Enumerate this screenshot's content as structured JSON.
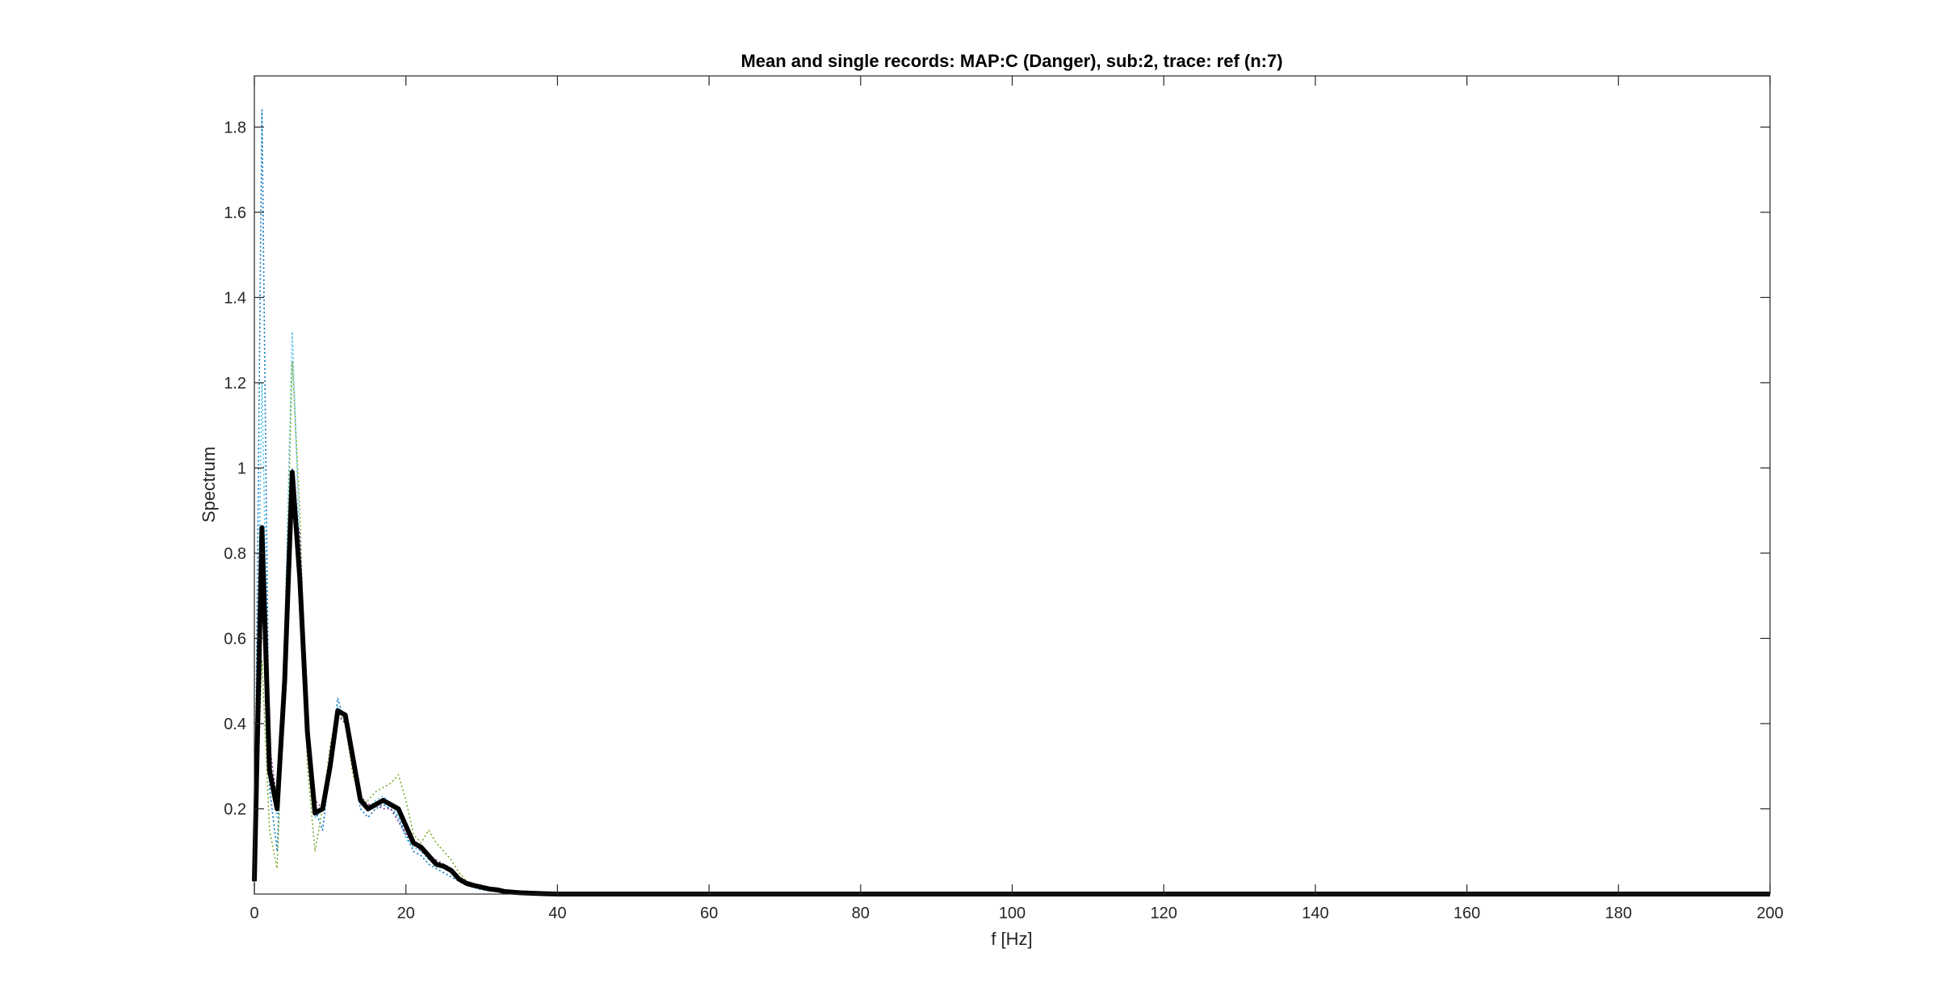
{
  "chart_data": {
    "type": "line",
    "title": "Mean and single records: MAP:C (Danger), sub:2, trace: ref (n:7)",
    "xlabel": "f [Hz]",
    "ylabel": "Spectrum",
    "xlim": [
      0,
      200
    ],
    "ylim": [
      0,
      1.92
    ],
    "xticks": [
      0,
      20,
      40,
      60,
      80,
      100,
      120,
      140,
      160,
      180,
      200
    ],
    "yticks": [
      0.2,
      0.4,
      0.6,
      0.8,
      1,
      1.2,
      1.4,
      1.6,
      1.8
    ],
    "xtick_labels": [
      "0",
      "20",
      "40",
      "60",
      "80",
      "100",
      "120",
      "140",
      "160",
      "180",
      "200"
    ],
    "ytick_labels": [
      "0.2",
      "0.4",
      "0.6",
      "0.8",
      "1",
      "1.2",
      "1.4",
      "1.6",
      "1.8"
    ],
    "grid": false,
    "series": [
      {
        "style": "dotted",
        "color": "#0072BD",
        "points": [
          [
            0,
            0.02
          ],
          [
            1,
            1.84
          ],
          [
            2,
            0.25
          ],
          [
            3,
            0.1
          ],
          [
            4,
            0.5
          ],
          [
            5,
            1.0
          ],
          [
            6,
            0.7
          ],
          [
            7,
            0.35
          ],
          [
            8,
            0.2
          ],
          [
            9,
            0.15
          ],
          [
            10,
            0.3
          ],
          [
            11,
            0.46
          ],
          [
            12,
            0.4
          ],
          [
            13,
            0.3
          ],
          [
            14,
            0.2
          ],
          [
            15,
            0.18
          ],
          [
            16,
            0.2
          ],
          [
            17,
            0.21
          ],
          [
            18,
            0.2
          ],
          [
            19,
            0.18
          ],
          [
            20,
            0.14
          ],
          [
            21,
            0.1
          ],
          [
            22,
            0.09
          ],
          [
            23,
            0.07
          ],
          [
            24,
            0.06
          ],
          [
            25,
            0.05
          ],
          [
            26,
            0.04
          ],
          [
            27,
            0.03
          ],
          [
            28,
            0.02
          ],
          [
            30,
            0.01
          ],
          [
            32,
            0.005
          ],
          [
            35,
            0.002
          ],
          [
            40,
            0.001
          ],
          [
            60,
            0.0
          ],
          [
            200,
            0.0
          ]
        ]
      },
      {
        "style": "dotted",
        "color": "#4DBEEE",
        "points": [
          [
            0,
            0.04
          ],
          [
            1,
            1.2
          ],
          [
            2,
            0.3
          ],
          [
            3,
            0.18
          ],
          [
            4,
            0.6
          ],
          [
            5,
            1.32
          ],
          [
            6,
            0.8
          ],
          [
            7,
            0.4
          ],
          [
            8,
            0.18
          ],
          [
            9,
            0.2
          ],
          [
            10,
            0.32
          ],
          [
            11,
            0.44
          ],
          [
            12,
            0.42
          ],
          [
            13,
            0.3
          ],
          [
            14,
            0.22
          ],
          [
            15,
            0.2
          ],
          [
            16,
            0.22
          ],
          [
            17,
            0.23
          ],
          [
            18,
            0.21
          ],
          [
            19,
            0.18
          ],
          [
            20,
            0.13
          ],
          [
            21,
            0.11
          ],
          [
            22,
            0.1
          ],
          [
            23,
            0.08
          ],
          [
            24,
            0.07
          ],
          [
            25,
            0.06
          ],
          [
            26,
            0.05
          ],
          [
            27,
            0.03
          ],
          [
            28,
            0.02
          ],
          [
            30,
            0.01
          ],
          [
            32,
            0.005
          ],
          [
            35,
            0.002
          ],
          [
            40,
            0.001
          ],
          [
            60,
            0.0
          ],
          [
            200,
            0.0
          ]
        ]
      },
      {
        "style": "dotted",
        "color": "#77AC30",
        "points": [
          [
            0,
            0.03
          ],
          [
            1,
            0.55
          ],
          [
            2,
            0.15
          ],
          [
            3,
            0.06
          ],
          [
            4,
            0.55
          ],
          [
            5,
            1.25
          ],
          [
            6,
            0.9
          ],
          [
            7,
            0.3
          ],
          [
            8,
            0.1
          ],
          [
            9,
            0.2
          ],
          [
            10,
            0.35
          ],
          [
            11,
            0.43
          ],
          [
            12,
            0.4
          ],
          [
            13,
            0.28
          ],
          [
            14,
            0.22
          ],
          [
            15,
            0.22
          ],
          [
            16,
            0.24
          ],
          [
            17,
            0.25
          ],
          [
            18,
            0.26
          ],
          [
            19,
            0.28
          ],
          [
            20,
            0.22
          ],
          [
            21,
            0.14
          ],
          [
            22,
            0.12
          ],
          [
            23,
            0.15
          ],
          [
            24,
            0.12
          ],
          [
            25,
            0.1
          ],
          [
            26,
            0.08
          ],
          [
            27,
            0.05
          ],
          [
            28,
            0.03
          ],
          [
            30,
            0.015
          ],
          [
            32,
            0.008
          ],
          [
            35,
            0.003
          ],
          [
            40,
            0.001
          ],
          [
            60,
            0.0
          ],
          [
            200,
            0.0
          ]
        ]
      },
      {
        "style": "dotted",
        "color": "#7E2F8E",
        "points": [
          [
            0,
            0.05
          ],
          [
            1,
            0.8
          ],
          [
            2,
            0.35
          ],
          [
            3,
            0.22
          ],
          [
            4,
            0.45
          ],
          [
            5,
            0.9
          ],
          [
            6,
            0.85
          ],
          [
            7,
            0.38
          ],
          [
            8,
            0.22
          ],
          [
            9,
            0.2
          ],
          [
            10,
            0.28
          ],
          [
            11,
            0.42
          ],
          [
            12,
            0.4
          ],
          [
            13,
            0.32
          ],
          [
            14,
            0.23
          ],
          [
            15,
            0.21
          ],
          [
            16,
            0.21
          ],
          [
            17,
            0.2
          ],
          [
            18,
            0.2
          ],
          [
            19,
            0.17
          ],
          [
            20,
            0.14
          ],
          [
            21,
            0.12
          ],
          [
            22,
            0.1
          ],
          [
            23,
            0.09
          ],
          [
            24,
            0.08
          ],
          [
            25,
            0.07
          ],
          [
            26,
            0.06
          ],
          [
            27,
            0.04
          ],
          [
            28,
            0.03
          ],
          [
            30,
            0.012
          ],
          [
            32,
            0.006
          ],
          [
            35,
            0.002
          ],
          [
            40,
            0.001
          ],
          [
            60,
            0.0
          ],
          [
            200,
            0.0
          ]
        ]
      },
      {
        "name": "Mean",
        "style": "solid",
        "color": "#000000",
        "points": [
          [
            0,
            0.03
          ],
          [
            1,
            0.86
          ],
          [
            2,
            0.29
          ],
          [
            3,
            0.2
          ],
          [
            4,
            0.5
          ],
          [
            5,
            0.99
          ],
          [
            6,
            0.74
          ],
          [
            7,
            0.38
          ],
          [
            8,
            0.19
          ],
          [
            9,
            0.2
          ],
          [
            10,
            0.3
          ],
          [
            11,
            0.43
          ],
          [
            12,
            0.42
          ],
          [
            13,
            0.32
          ],
          [
            14,
            0.22
          ],
          [
            15,
            0.2
          ],
          [
            16,
            0.21
          ],
          [
            17,
            0.22
          ],
          [
            18,
            0.21
          ],
          [
            19,
            0.2
          ],
          [
            20,
            0.16
          ],
          [
            21,
            0.12
          ],
          [
            22,
            0.11
          ],
          [
            23,
            0.09
          ],
          [
            24,
            0.07
          ],
          [
            25,
            0.065
          ],
          [
            26,
            0.055
          ],
          [
            27,
            0.035
          ],
          [
            28,
            0.025
          ],
          [
            29,
            0.02
          ],
          [
            30,
            0.016
          ],
          [
            31,
            0.012
          ],
          [
            32,
            0.01
          ],
          [
            33,
            0.006
          ],
          [
            35,
            0.003
          ],
          [
            38,
            0.001
          ],
          [
            40,
            0.0
          ],
          [
            60,
            0.0
          ],
          [
            100,
            0.0
          ],
          [
            200,
            0.0
          ]
        ]
      }
    ]
  }
}
